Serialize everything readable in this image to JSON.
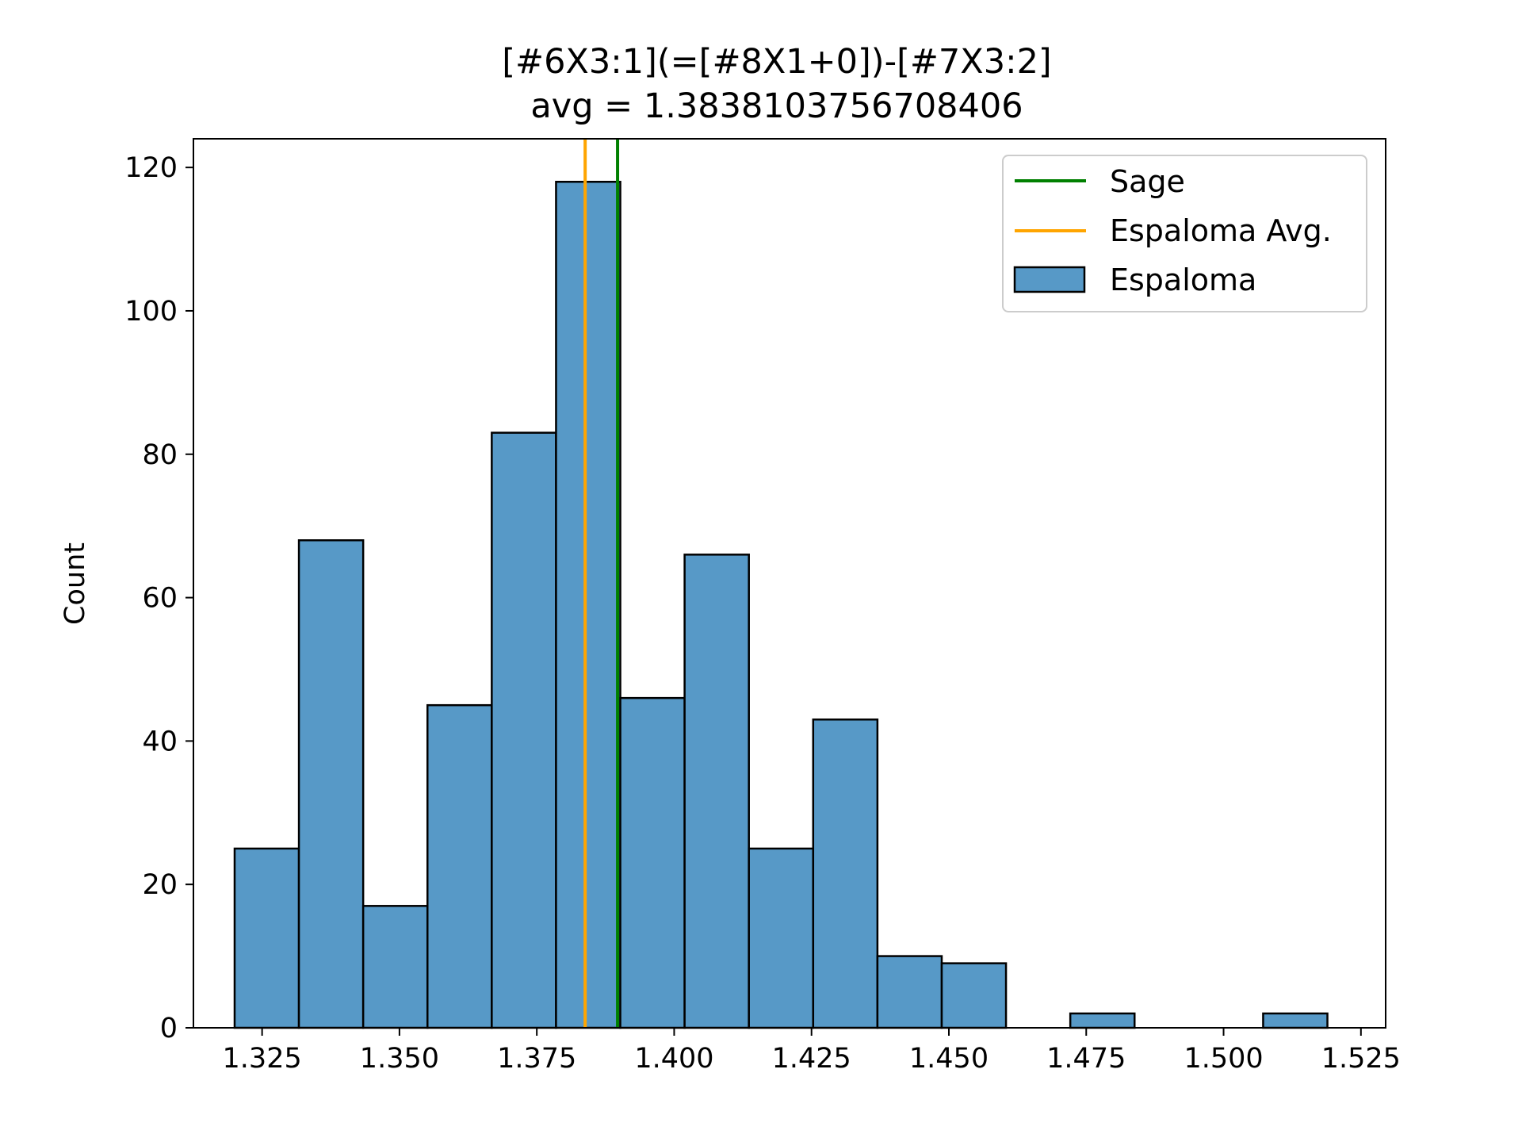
{
  "chart_data": {
    "type": "bar",
    "title": "[#6X3:1](=[#8X1+0])-[#7X3:2]",
    "subtitle": "avg = 1.3838103756708406",
    "xlabel": "",
    "ylabel": "Count",
    "xlim": [
      1.3125,
      1.5295
    ],
    "ylim": [
      0,
      124
    ],
    "x_ticks": [
      "1.325",
      "1.350",
      "1.375",
      "1.400",
      "1.425",
      "1.450",
      "1.475",
      "1.500",
      "1.525"
    ],
    "y_ticks": [
      "0",
      "20",
      "40",
      "60",
      "80",
      "100",
      "120"
    ],
    "grid": false,
    "legend_position": "top-right",
    "bin_edges": [
      1.32,
      1.3317,
      1.3434,
      1.3551,
      1.3668,
      1.3785,
      1.3902,
      1.4019,
      1.4136,
      1.4253,
      1.437,
      1.4487,
      1.4604,
      1.4721,
      1.4838,
      1.4955,
      1.5072,
      1.5189
    ],
    "counts": [
      25,
      68,
      17,
      45,
      83,
      118,
      46,
      66,
      25,
      43,
      10,
      9,
      0,
      2,
      0,
      0,
      2
    ],
    "series": [
      {
        "name": "Espaloma",
        "kind": "histogram",
        "color": "#5799c7",
        "edge_color": "#000000"
      },
      {
        "name": "Sage",
        "kind": "vline",
        "x": 1.3897,
        "color": "#008000"
      },
      {
        "name": "Espaloma Avg.",
        "kind": "vline",
        "x": 1.3838,
        "color": "#ffa500"
      }
    ],
    "legend": [
      "Sage",
      "Espaloma Avg.",
      "Espaloma"
    ]
  }
}
